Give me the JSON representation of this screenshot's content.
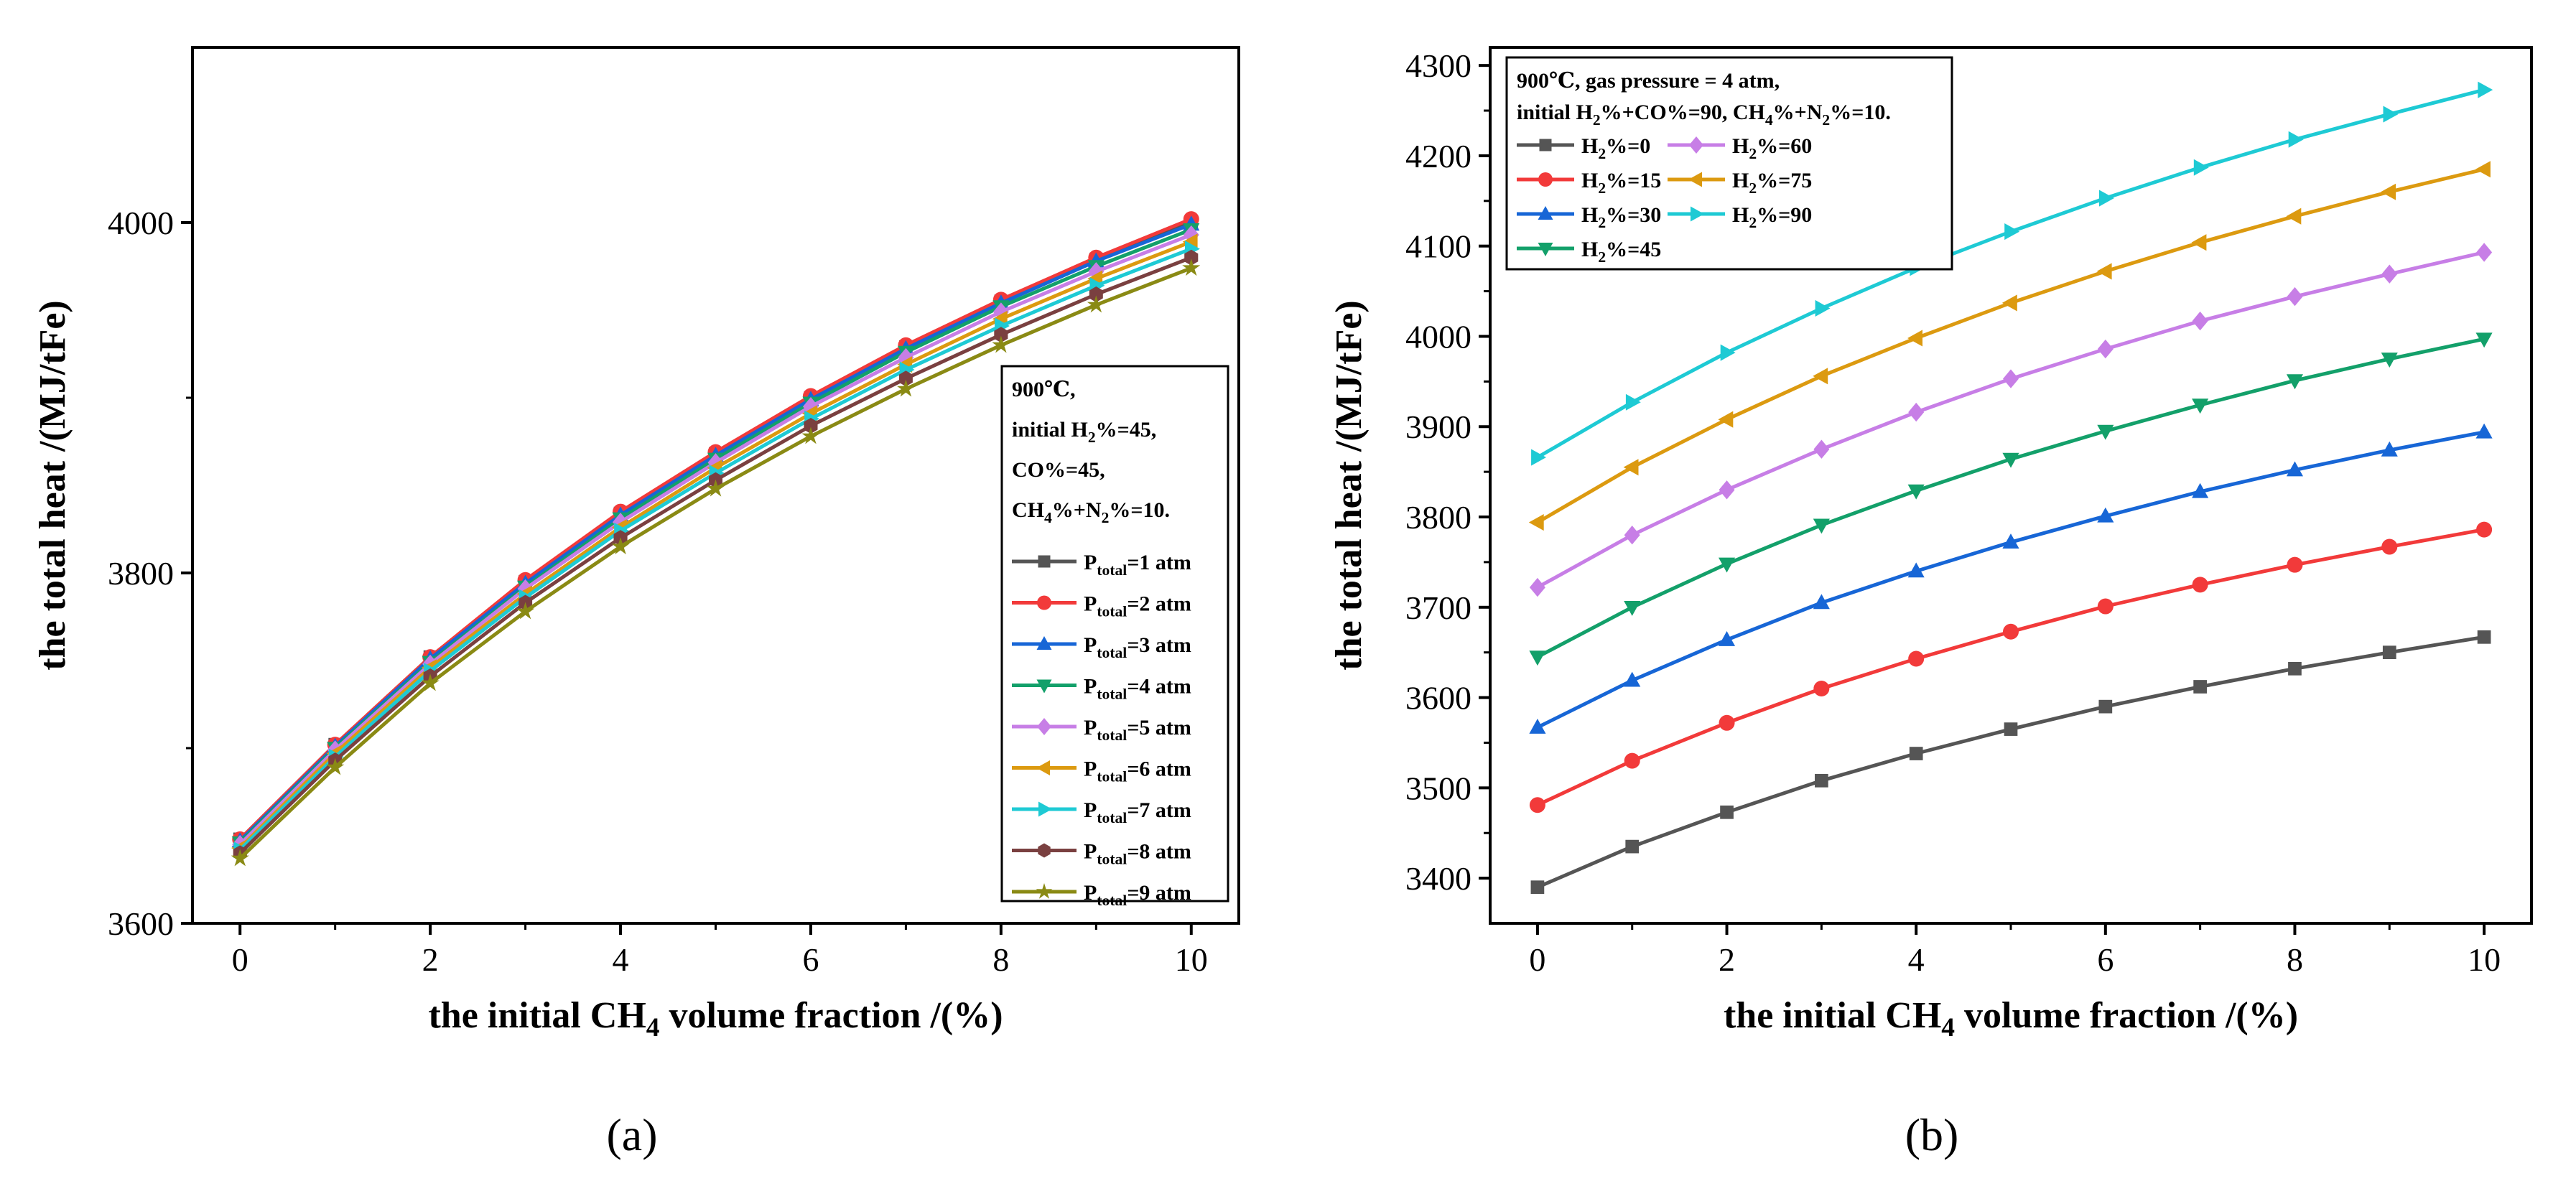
{
  "chart_data": [
    {
      "type": "line",
      "panel_label": "(a)",
      "xlabel_parts": [
        "the initial CH",
        "4",
        " volume fraction /(%)"
      ],
      "ylabel": "the total heat /(MJ/tFe)",
      "xlim": [
        -0.5,
        10.5
      ],
      "ylim": [
        3600,
        4100
      ],
      "xticks": [
        0,
        2,
        4,
        6,
        8,
        10
      ],
      "yticks": [
        3600,
        3800,
        4000
      ],
      "x": [
        0,
        1,
        2,
        3,
        4,
        5,
        6,
        7,
        8,
        9,
        10
      ],
      "legend_position": "right, lower-middle",
      "legend_header": [
        [
          {
            "t": "900℃,"
          }
        ],
        [
          {
            "t": "initial H"
          },
          {
            "t": "2",
            "s": "sub"
          },
          {
            "t": "%=45,"
          }
        ],
        [
          {
            "t": "CO%=45,"
          }
        ],
        [
          {
            "t": "CH"
          },
          {
            "t": "4",
            "s": "sub"
          },
          {
            "t": "%+N"
          },
          {
            "t": "2",
            "s": "sub"
          },
          {
            "t": "%=10."
          }
        ]
      ],
      "series": [
        {
          "name": "Ptotal=1 atm",
          "label": [
            {
              "t": "P"
            },
            {
              "t": "total",
              "s": "sub"
            },
            {
              "t": "=1 atm"
            }
          ],
          "color": "#555555",
          "marker": "square",
          "values": [
            3648,
            3702,
            3752,
            3795,
            3834,
            3868,
            3900,
            3929,
            3955,
            3979,
            4000
          ]
        },
        {
          "name": "Ptotal=2 atm",
          "label": [
            {
              "t": "P"
            },
            {
              "t": "total",
              "s": "sub"
            },
            {
              "t": "=2 atm"
            }
          ],
          "color": "#f23a3a",
          "marker": "circle",
          "values": [
            3648,
            3702,
            3752,
            3796,
            3835,
            3869,
            3901,
            3930,
            3956,
            3980,
            4002
          ]
        },
        {
          "name": "Ptotal=3 atm",
          "label": [
            {
              "t": "P"
            },
            {
              "t": "total",
              "s": "sub"
            },
            {
              "t": "=3 atm"
            }
          ],
          "color": "#1766d6",
          "marker": "triangle-up",
          "values": [
            3647,
            3701,
            3751,
            3794,
            3833,
            3867,
            3899,
            3928,
            3954,
            3978,
            3999
          ]
        },
        {
          "name": "Ptotal=4 atm",
          "label": [
            {
              "t": "P"
            },
            {
              "t": "total",
              "s": "sub"
            },
            {
              "t": "=4 atm"
            }
          ],
          "color": "#13a06a",
          "marker": "triangle-down",
          "values": [
            3646,
            3700,
            3749,
            3792,
            3831,
            3865,
            3897,
            3926,
            3952,
            3975,
            3996
          ]
        },
        {
          "name": "Ptotal=5 atm",
          "label": [
            {
              "t": "P"
            },
            {
              "t": "total",
              "s": "sub"
            },
            {
              "t": "=5 atm"
            }
          ],
          "color": "#c77ee6",
          "marker": "diamond",
          "values": [
            3645,
            3699,
            3748,
            3791,
            3829,
            3863,
            3895,
            3923,
            3949,
            3972,
            3993
          ]
        },
        {
          "name": "Ptotal=6 atm",
          "label": [
            {
              "t": "P"
            },
            {
              "t": "total",
              "s": "sub"
            },
            {
              "t": "=6 atm"
            }
          ],
          "color": "#dc9a10",
          "marker": "triangle-left",
          "values": [
            3643,
            3697,
            3746,
            3788,
            3826,
            3860,
            3891,
            3919,
            3945,
            3968,
            3989
          ]
        },
        {
          "name": "Ptotal=7 atm",
          "label": [
            {
              "t": "P"
            },
            {
              "t": "total",
              "s": "sub"
            },
            {
              "t": "=7 atm"
            }
          ],
          "color": "#1ecad4",
          "marker": "triangle-right",
          "values": [
            3642,
            3695,
            3744,
            3786,
            3824,
            3857,
            3888,
            3916,
            3941,
            3964,
            3985
          ]
        },
        {
          "name": "Ptotal=8 atm",
          "label": [
            {
              "t": "P"
            },
            {
              "t": "total",
              "s": "sub"
            },
            {
              "t": "=8 atm"
            }
          ],
          "color": "#7a4040",
          "marker": "hexagon",
          "values": [
            3640,
            3693,
            3741,
            3783,
            3820,
            3853,
            3884,
            3911,
            3936,
            3959,
            3980
          ]
        },
        {
          "name": "Ptotal=9 atm",
          "label": [
            {
              "t": "P"
            },
            {
              "t": "total",
              "s": "sub"
            },
            {
              "t": "=9 atm"
            }
          ],
          "color": "#8a8a14",
          "marker": "star",
          "values": [
            3637,
            3689,
            3737,
            3778,
            3815,
            3848,
            3878,
            3905,
            3930,
            3953,
            3974
          ]
        }
      ]
    },
    {
      "type": "line",
      "panel_label": "(b)",
      "xlabel_parts": [
        "the initial CH",
        "4",
        " volume fraction /(%)"
      ],
      "ylabel": "the total heat /(MJ/tFe)",
      "xlim": [
        -0.5,
        10.5
      ],
      "ylim": [
        3350,
        4320
      ],
      "xticks": [
        0,
        2,
        4,
        6,
        8,
        10
      ],
      "yticks": [
        3400,
        3500,
        3600,
        3700,
        3800,
        3900,
        4000,
        4100,
        4200,
        4300
      ],
      "x": [
        0,
        1,
        2,
        3,
        4,
        5,
        6,
        7,
        8,
        9,
        10
      ],
      "legend_position": "top-left",
      "legend_header": [
        [
          {
            "t": "900℃,  gas pressure = 4 atm,"
          }
        ],
        [
          {
            "t": "initial H"
          },
          {
            "t": "2",
            "s": "sub"
          },
          {
            "t": "%+CO%=90,  CH"
          },
          {
            "t": "4",
            "s": "sub"
          },
          {
            "t": "%+N"
          },
          {
            "t": "2",
            "s": "sub"
          },
          {
            "t": "%=10."
          }
        ]
      ],
      "series": [
        {
          "name": "H2%=0",
          "label": [
            {
              "t": "H"
            },
            {
              "t": "2",
              "s": "sub"
            },
            {
              "t": "%=0"
            }
          ],
          "color": "#555555",
          "marker": "square",
          "values": [
            3390,
            3435,
            3473,
            3508,
            3538,
            3565,
            3590,
            3612,
            3632,
            3650,
            3667
          ]
        },
        {
          "name": "H2%=15",
          "label": [
            {
              "t": "H"
            },
            {
              "t": "2",
              "s": "sub"
            },
            {
              "t": "%=15"
            }
          ],
          "color": "#f23a3a",
          "marker": "circle",
          "values": [
            3481,
            3530,
            3572,
            3610,
            3643,
            3673,
            3701,
            3725,
            3747,
            3767,
            3786
          ]
        },
        {
          "name": "H2%=30",
          "label": [
            {
              "t": "H"
            },
            {
              "t": "2",
              "s": "sub"
            },
            {
              "t": "%=30"
            }
          ],
          "color": "#1766d6",
          "marker": "triangle-up",
          "values": [
            3567,
            3619,
            3664,
            3705,
            3740,
            3772,
            3801,
            3828,
            3852,
            3874,
            3894
          ]
        },
        {
          "name": "H2%=45",
          "label": [
            {
              "t": "H"
            },
            {
              "t": "2",
              "s": "sub"
            },
            {
              "t": "%=45"
            }
          ],
          "color": "#13a06a",
          "marker": "triangle-down",
          "values": [
            3645,
            3700,
            3748,
            3791,
            3829,
            3864,
            3895,
            3924,
            3951,
            3975,
            3997
          ]
        },
        {
          "name": "H2%=60",
          "label": [
            {
              "t": "H"
            },
            {
              "t": "2",
              "s": "sub"
            },
            {
              "t": "%=60"
            }
          ],
          "color": "#c77ee6",
          "marker": "diamond",
          "values": [
            3722,
            3780,
            3830,
            3875,
            3916,
            3953,
            3986,
            4017,
            4044,
            4069,
            4093
          ]
        },
        {
          "name": "H2%=75",
          "label": [
            {
              "t": "H"
            },
            {
              "t": "2",
              "s": "sub"
            },
            {
              "t": "%=75"
            }
          ],
          "color": "#dc9a10",
          "marker": "triangle-left",
          "values": [
            3794,
            3855,
            3908,
            3956,
            3998,
            4037,
            4072,
            4104,
            4133,
            4160,
            4185
          ]
        },
        {
          "name": "H2%=90",
          "label": [
            {
              "t": "H"
            },
            {
              "t": "2",
              "s": "sub"
            },
            {
              "t": "%=90"
            }
          ],
          "color": "#1ecad4",
          "marker": "triangle-right",
          "values": [
            3866,
            3927,
            3982,
            4031,
            4076,
            4116,
            4153,
            4187,
            4218,
            4246,
            4273
          ]
        }
      ]
    }
  ]
}
